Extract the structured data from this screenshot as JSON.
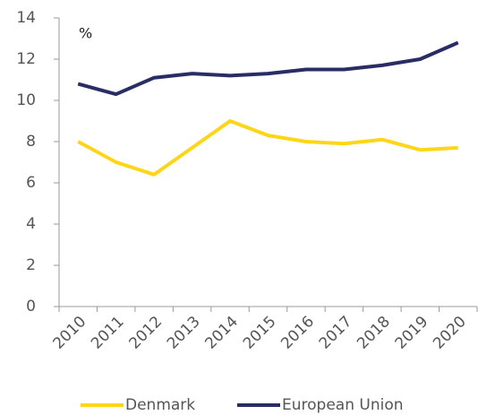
{
  "chart_data": {
    "type": "line",
    "annotation": "%",
    "categories": [
      "2010",
      "2011",
      "2012",
      "2013",
      "2014",
      "2015",
      "2016",
      "2017",
      "2018",
      "2019",
      "2020"
    ],
    "series": [
      {
        "name": "Denmark",
        "color": "#ffd617",
        "values": [
          8.0,
          7.0,
          6.4,
          7.7,
          9.0,
          8.3,
          8.0,
          7.9,
          8.1,
          7.6,
          7.7
        ]
      },
      {
        "name": "European Union",
        "color": "#2a2d63",
        "values": [
          10.8,
          10.3,
          11.1,
          11.3,
          11.2,
          11.3,
          11.5,
          11.5,
          11.7,
          12.0,
          12.8
        ]
      }
    ],
    "ylim": [
      0,
      14
    ],
    "yticks": [
      0,
      2,
      4,
      6,
      8,
      10,
      12,
      14
    ],
    "grid": false,
    "legend": "bottom"
  }
}
